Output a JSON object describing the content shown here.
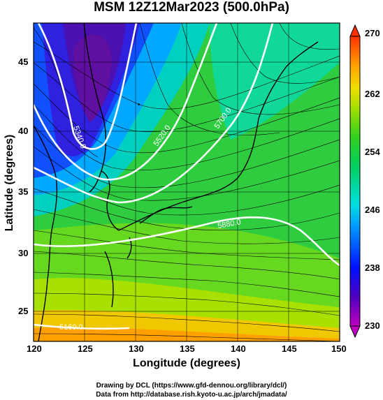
{
  "title": "MSM 12Z12Mar2023 (500.0hPa)",
  "x_axis": {
    "label": "Longitude (degrees)",
    "ticks": [
      "120",
      "125",
      "130",
      "135",
      "140",
      "145",
      "150"
    ],
    "range": [
      120,
      150
    ]
  },
  "y_axis": {
    "label": "Latitude  (degrees)",
    "ticks": [
      "25",
      "30",
      "35",
      "40",
      "45"
    ],
    "range": [
      22.6,
      48
    ]
  },
  "colorbar": {
    "ticks": [
      "230",
      "238",
      "246",
      "254",
      "262",
      "270"
    ],
    "range": [
      230,
      270
    ],
    "colors": [
      "#c000c0",
      "#5000c0",
      "#0010ff",
      "#00a0ff",
      "#00e0e0",
      "#00d060",
      "#30d020",
      "#a0e000",
      "#f0e000",
      "#ffa000",
      "#ff3000"
    ]
  },
  "contours": [
    {
      "label": "5520.0",
      "value": 5520
    },
    {
      "label": "5700.0",
      "value": 5700
    },
    {
      "label": "5880.0",
      "value": 5880
    },
    {
      "label": "5340.0",
      "value": 5340
    },
    {
      "label": "5160.0",
      "value": 5160
    }
  ],
  "credits": {
    "line1": "Drawing by DCL (https://www.gfd-dennou.org/library/dcl/)",
    "line2": "Data from http://database.rish.kyoto-u.ac.jp/arch/jmadata/"
  }
}
